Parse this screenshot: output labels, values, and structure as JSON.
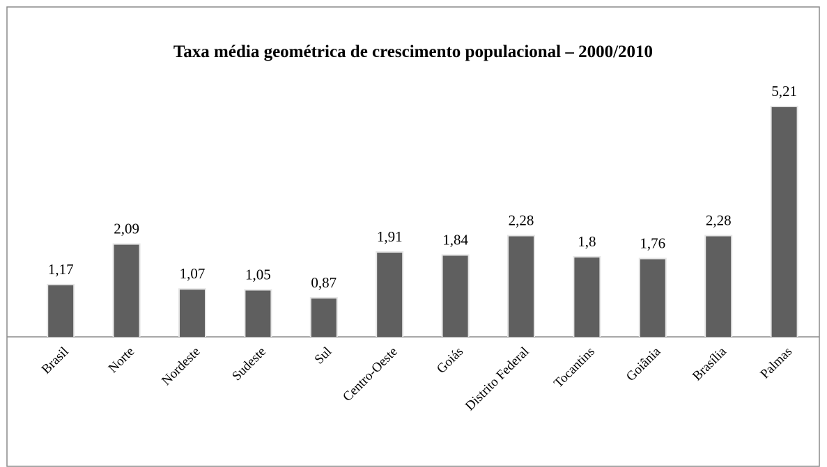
{
  "chart_data": {
    "type": "bar",
    "title": "Taxa média geométrica de crescimento populacional – 2000/2010",
    "categories": [
      "Brasil",
      "Norte",
      "Nordeste",
      "Sudeste",
      "Sul",
      "Centro-Oeste",
      "Goiás",
      "Distrito Federal",
      "Tocantins",
      "Goiânia",
      "Brasília",
      "Palmas"
    ],
    "values": [
      1.17,
      2.09,
      1.07,
      1.05,
      0.87,
      1.91,
      1.84,
      2.28,
      1.8,
      1.76,
      2.28,
      5.21
    ],
    "value_labels": [
      "1,17",
      "2,09",
      "1,07",
      "1,05",
      "0,87",
      "1,91",
      "1,84",
      "2,28",
      "1,8",
      "1,76",
      "2,28",
      "5,21"
    ],
    "color": "#5f5f5f"
  }
}
